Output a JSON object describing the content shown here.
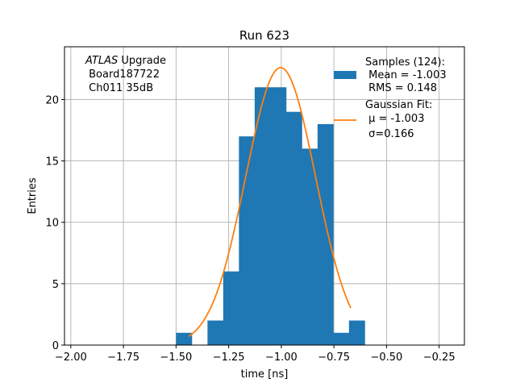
{
  "chart_data": {
    "type": "bar",
    "title": "Run 623",
    "xlabel": "time [ns]",
    "ylabel": "Entries",
    "xlim": [
      -2.03,
      -0.13
    ],
    "ylim": [
      0,
      24.3
    ],
    "grid": true,
    "x_ticks": [
      -2.0,
      -1.75,
      -1.5,
      -1.25,
      -1.0,
      -0.75,
      -0.5,
      -0.25
    ],
    "x_tick_labels": [
      "−2.00",
      "−1.75",
      "−1.50",
      "−1.25",
      "−1.00",
      "−0.75",
      "−0.50",
      "−0.25"
    ],
    "y_ticks": [
      0,
      5,
      10,
      15,
      20
    ],
    "y_tick_labels": [
      "0",
      "5",
      "10",
      "15",
      "20"
    ],
    "histogram": {
      "name": "Samples",
      "color": "#1f77b4",
      "bin_edges": [
        -1.5,
        -1.4253,
        -1.3506,
        -1.2759,
        -1.2012,
        -1.1265,
        -1.0518,
        -0.9771,
        -0.9024,
        -0.8277,
        -0.753,
        -0.6783,
        -0.6036
      ],
      "counts": [
        1,
        0,
        2,
        6,
        17,
        21,
        21,
        19,
        16,
        18,
        1,
        2
      ]
    },
    "fit": {
      "name": "Gaussian Fit",
      "color": "#ff7f0e",
      "mu": -1.003,
      "sigma": 0.166,
      "amplitude": 22.6,
      "x_range": [
        -1.44,
        -0.67
      ]
    },
    "legend": {
      "placement": "top-right",
      "entries": [
        {
          "kind": "patch",
          "color": "#1f77b4",
          "lines": [
            "Samples (124):",
            " Mean = -1.003",
            " RMS = 0.148"
          ]
        },
        {
          "kind": "line",
          "color": "#ff7f0e",
          "lines": [
            "Gaussian Fit:",
            " μ = -1.003",
            " σ=0.166"
          ]
        }
      ]
    },
    "annotation": {
      "italic": "ATLAS",
      "rest": " Upgrade",
      "line2": " Board187722",
      "line3": " Ch011 35dB"
    }
  }
}
